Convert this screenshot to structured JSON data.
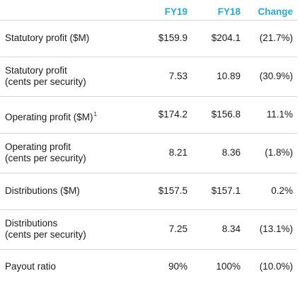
{
  "header": {
    "col1": "FY19",
    "col2": "FY18",
    "col3": "Change"
  },
  "rows": [
    {
      "label_line1": "Statutory profit ($M)",
      "label_line2": "",
      "sup": "",
      "fy19": "$159.9",
      "fy18": "$204.1",
      "change": "(21.7%)"
    },
    {
      "label_line1": "Statutory profit",
      "label_line2": "(cents per security)",
      "sup": "",
      "fy19": "7.53",
      "fy18": "10.89",
      "change": "(30.9%)"
    },
    {
      "label_line1": "Operating profit ($M)",
      "label_line2": "",
      "sup": "1",
      "fy19": "$174.2",
      "fy18": "$156.8",
      "change": "11.1%"
    },
    {
      "label_line1": "Operating profit",
      "label_line2": "(cents per security)",
      "sup": "",
      "fy19": "8.21",
      "fy18": "8.36",
      "change": "(1.8%)"
    },
    {
      "label_line1": "Distributions ($M)",
      "label_line2": "",
      "sup": "",
      "fy19": "$157.5",
      "fy18": "$157.1",
      "change": "0.2%"
    },
    {
      "label_line1": "Distributions",
      "label_line2": "(cents per security)",
      "sup": "",
      "fy19": "7.25",
      "fy18": "8.34",
      "change": "(13.1%)"
    },
    {
      "label_line1": "Payout ratio",
      "label_line2": "",
      "sup": "",
      "fy19": "90%",
      "fy18": "100%",
      "change": "(10.0%)"
    }
  ]
}
